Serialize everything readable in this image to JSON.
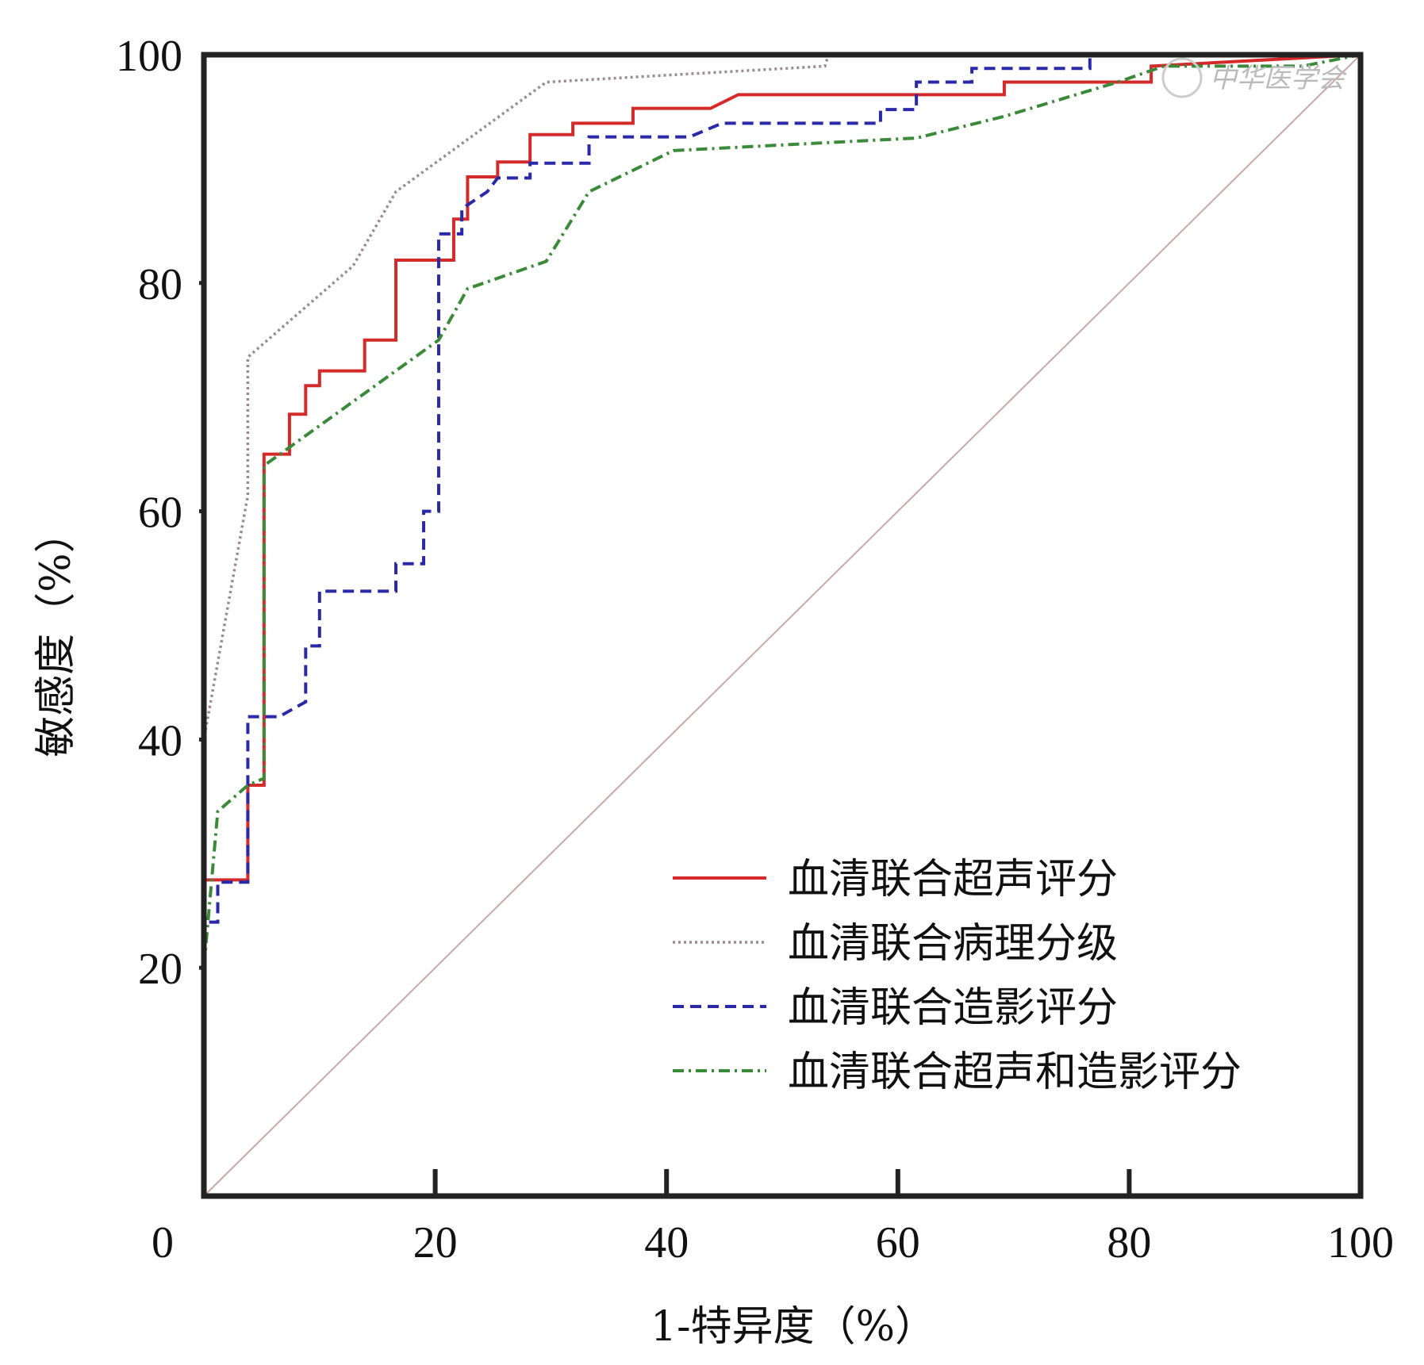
{
  "chart_data": {
    "type": "line",
    "title": "",
    "xlabel": "1-特异度（%）",
    "ylabel": "敏感度（%）",
    "xlim": [
      0,
      100
    ],
    "ylim": [
      0,
      100
    ],
    "xticks": [
      "0",
      "20",
      "40",
      "60",
      "80",
      "100"
    ],
    "yticks": [
      "20",
      "40",
      "60",
      "80",
      "100"
    ],
    "grid": false,
    "legend_position": "bottom-right",
    "watermark": "中华医学会",
    "series": [
      {
        "name": "血清联合超声评分",
        "color": "#d42a2a",
        "style": "solid",
        "points": [
          [
            0,
            0
          ],
          [
            0,
            27.7
          ],
          [
            3.8,
            27.7
          ],
          [
            3.8,
            36
          ],
          [
            5.2,
            36
          ],
          [
            5.2,
            65
          ],
          [
            7.4,
            65
          ],
          [
            7.4,
            68.5
          ],
          [
            8.8,
            68.5
          ],
          [
            8.8,
            71
          ],
          [
            10,
            71
          ],
          [
            10,
            72.3
          ],
          [
            13.9,
            72.3
          ],
          [
            13.9,
            75
          ],
          [
            16.6,
            75
          ],
          [
            16.6,
            82
          ],
          [
            21.6,
            82
          ],
          [
            21.6,
            85.6
          ],
          [
            22.8,
            85.6
          ],
          [
            22.8,
            89.3
          ],
          [
            25.4,
            89.3
          ],
          [
            25.4,
            90.6
          ],
          [
            28.2,
            90.6
          ],
          [
            28.2,
            93
          ],
          [
            31.9,
            93
          ],
          [
            31.9,
            94
          ],
          [
            37.1,
            94
          ],
          [
            37.1,
            95.3
          ],
          [
            43.8,
            95.3
          ],
          [
            46.2,
            96.5
          ],
          [
            69.2,
            96.5
          ],
          [
            69.2,
            97.6
          ],
          [
            81.9,
            97.6
          ],
          [
            81.9,
            99
          ],
          [
            100,
            100
          ]
        ]
      },
      {
        "name": "血清联合病理分级",
        "color": "#9a8a92",
        "style": "dotted",
        "points": [
          [
            0,
            0
          ],
          [
            0,
            40
          ],
          [
            3.8,
            61.4
          ],
          [
            3.8,
            73.5
          ],
          [
            12.9,
            81.5
          ],
          [
            16.6,
            88
          ],
          [
            29.6,
            97.6
          ],
          [
            53.7,
            99
          ],
          [
            54,
            100
          ],
          [
            100,
            100
          ]
        ]
      },
      {
        "name": "血清联合造影评分",
        "color": "#2a2aa8",
        "style": "dashed",
        "points": [
          [
            0,
            0
          ],
          [
            0,
            24
          ],
          [
            1.2,
            24
          ],
          [
            1.2,
            27.5
          ],
          [
            3.8,
            27.5
          ],
          [
            3.8,
            42
          ],
          [
            6.5,
            42
          ],
          [
            8.8,
            43.3
          ],
          [
            8.8,
            48.2
          ],
          [
            10,
            48.2
          ],
          [
            10,
            53
          ],
          [
            16.6,
            53
          ],
          [
            16.6,
            55.4
          ],
          [
            19,
            55.4
          ],
          [
            19,
            60
          ],
          [
            20.3,
            60
          ],
          [
            20.3,
            84.3
          ],
          [
            22.3,
            84.3
          ],
          [
            22.3,
            86.5
          ],
          [
            24.5,
            88
          ],
          [
            25.4,
            89.2
          ],
          [
            28.2,
            89.2
          ],
          [
            28.2,
            90.5
          ],
          [
            33.3,
            90.5
          ],
          [
            33.3,
            92.8
          ],
          [
            42,
            92.8
          ],
          [
            44.8,
            94
          ],
          [
            58.5,
            94
          ],
          [
            58.5,
            95.2
          ],
          [
            61.6,
            95.2
          ],
          [
            61.6,
            97.6
          ],
          [
            66.4,
            97.6
          ],
          [
            66.4,
            98.8
          ],
          [
            76.6,
            98.8
          ],
          [
            76.6,
            100
          ],
          [
            100,
            100
          ]
        ]
      },
      {
        "name": "血清联合超声和造影评分",
        "color": "#3a8a3a",
        "style": "dashdot",
        "points": [
          [
            0,
            0
          ],
          [
            0,
            20
          ],
          [
            1.2,
            33.7
          ],
          [
            3.8,
            36
          ],
          [
            5.2,
            36.6
          ],
          [
            5.2,
            64
          ],
          [
            20.3,
            75
          ],
          [
            22.8,
            79.5
          ],
          [
            29.6,
            81.9
          ],
          [
            33.3,
            88
          ],
          [
            40.6,
            91.6
          ],
          [
            61.6,
            92.7
          ],
          [
            69.2,
            94.6
          ],
          [
            79,
            97.6
          ],
          [
            83,
            99
          ],
          [
            95,
            99
          ],
          [
            100,
            100
          ]
        ]
      },
      {
        "name": "reference",
        "color": "#c8a8a8",
        "style": "thin",
        "points": [
          [
            0,
            0
          ],
          [
            100,
            100
          ]
        ]
      }
    ]
  }
}
